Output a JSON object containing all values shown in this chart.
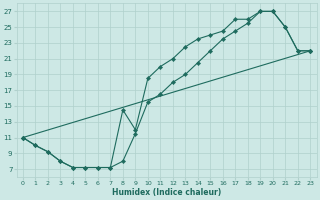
{
  "xlabel": "Humidex (Indice chaleur)",
  "bg_color": "#cde8e5",
  "grid_color": "#b0d0cc",
  "line_color": "#1e6b5e",
  "xlim": [
    -0.5,
    23.5
  ],
  "ylim": [
    6,
    28
  ],
  "xticks": [
    0,
    1,
    2,
    3,
    4,
    5,
    6,
    7,
    8,
    9,
    10,
    11,
    12,
    13,
    14,
    15,
    16,
    17,
    18,
    19,
    20,
    21,
    22,
    23
  ],
  "yticks": [
    7,
    9,
    11,
    13,
    15,
    17,
    19,
    21,
    23,
    25,
    27
  ],
  "line1_x": [
    0,
    1,
    2,
    3,
    4,
    5,
    6,
    7,
    8,
    9,
    10,
    11,
    12,
    13,
    14,
    15,
    16,
    17,
    18,
    19,
    20,
    21,
    22,
    23
  ],
  "line1_y": [
    11,
    10,
    9.2,
    8.0,
    7.2,
    7.2,
    7.2,
    7.2,
    8.0,
    11.5,
    15.5,
    16.5,
    18.0,
    19.0,
    20.5,
    22.0,
    23.5,
    24.5,
    25.5,
    27.0,
    27.0,
    25.0,
    22.0,
    22.0
  ],
  "line2_x": [
    0,
    1,
    2,
    3,
    4,
    5,
    6,
    7,
    8,
    9,
    10,
    11,
    12,
    13,
    14,
    15,
    16,
    17,
    18,
    19,
    20,
    21,
    22,
    23
  ],
  "line2_y": [
    11,
    10,
    9.2,
    8.0,
    7.2,
    7.2,
    7.2,
    7.2,
    14.5,
    12.0,
    18.5,
    20.0,
    21.0,
    22.5,
    23.5,
    24.0,
    24.5,
    26.0,
    26.0,
    27.0,
    27.0,
    25.0,
    22.0,
    22.0
  ],
  "line3_x": [
    0,
    23
  ],
  "line3_y": [
    11,
    22.0
  ]
}
